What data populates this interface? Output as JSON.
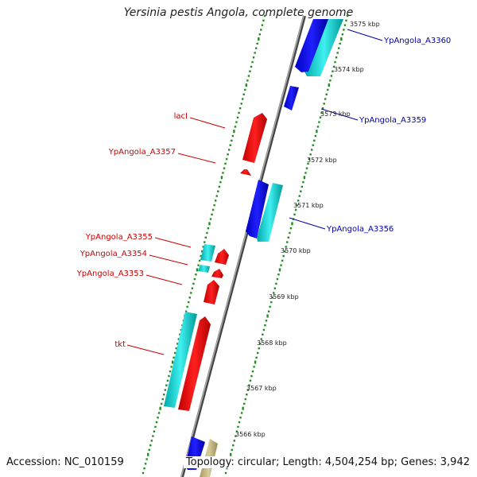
{
  "title": "Yersinia pestis Angola, complete genome",
  "accession": "Accession: NC_010159",
  "topology": "Topology: circular; Length: 4,504,254 bp; Genes: 3,942",
  "colors": {
    "backbone": "#888888",
    "tick_dots": "#228b22",
    "forward_gene": "#e00000",
    "forward_label": "#cc0000",
    "reverse_gene_dark": "#0000e0",
    "reverse_gene_light": "#00cccc",
    "reverse_label": "#0000aa",
    "other_gene": "#c8b878"
  },
  "ruler": {
    "unit": "kbp",
    "ticks": [
      "3575 kbp",
      "3574 kbp",
      "3573 kbp",
      "3572 kbp",
      "3571 kbp",
      "3570 kbp",
      "3569 kbp",
      "3568 kbp",
      "3567 kbp",
      "3566 kbp"
    ]
  },
  "gene_labels": {
    "forward": [
      {
        "name": "lacI"
      },
      {
        "name": "YpAngola_A3357"
      },
      {
        "name": "YpAngola_A3355"
      },
      {
        "name": "YpAngola_A3354"
      },
      {
        "name": "YpAngola_A3353"
      },
      {
        "name": "tkt"
      }
    ],
    "reverse": [
      {
        "name": "YpAngola_A3360"
      },
      {
        "name": "YpAngola_A3359"
      },
      {
        "name": "YpAngola_A3356"
      }
    ]
  }
}
